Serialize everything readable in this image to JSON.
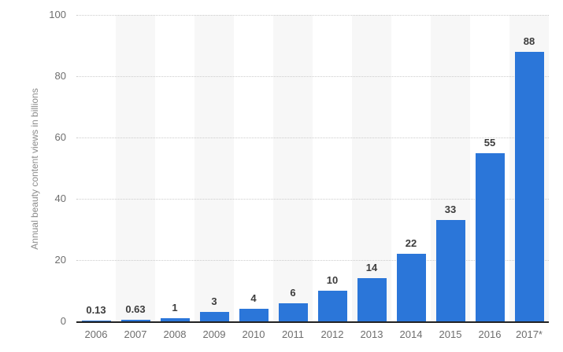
{
  "chart_data": {
    "type": "bar",
    "categories": [
      "2006",
      "2007",
      "2008",
      "2009",
      "2010",
      "2011",
      "2012",
      "2013",
      "2014",
      "2015",
      "2016",
      "2017*"
    ],
    "values": [
      0.13,
      0.63,
      1,
      3,
      4,
      6,
      10,
      14,
      22,
      33,
      55,
      88
    ],
    "value_labels": [
      "0.13",
      "0.63",
      "1",
      "3",
      "4",
      "6",
      "10",
      "14",
      "22",
      "33",
      "55",
      "88"
    ],
    "title": "",
    "xlabel": "",
    "ylabel": "Annual beauty content views in billions",
    "ylim": [
      0,
      100
    ],
    "yticks": [
      0,
      20,
      40,
      60,
      80,
      100
    ],
    "grid": "horizontal-dotted",
    "legend": "none",
    "striped_columns": "alternating, starting with 2007",
    "colors": {
      "bar": "#2b76d9",
      "value_label": "#3c3c3c",
      "axis_label": "#6e6e6e",
      "y_axis_title": "#8c8c8c",
      "gridline": "#cccccc",
      "baseline": "#222222",
      "column_stripe": "#f7f7f7",
      "background": "#ffffff"
    }
  }
}
